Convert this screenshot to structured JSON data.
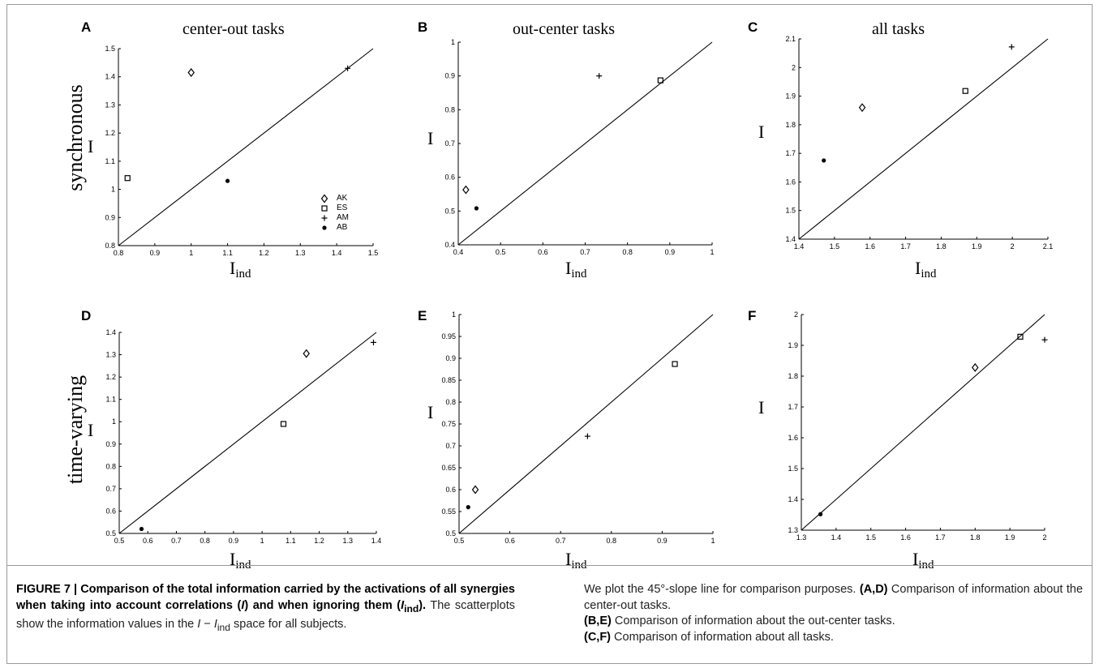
{
  "figure": {
    "row_labels": [
      "synchronous",
      "time-varying"
    ],
    "x_axis_label_main": "I",
    "x_axis_label_sub": "ind",
    "y_axis_label": "I",
    "legend": [
      {
        "label": "AK",
        "marker": "diamond"
      },
      {
        "label": "ES",
        "marker": "square"
      },
      {
        "label": "AM",
        "marker": "plus"
      },
      {
        "label": "AB",
        "marker": "dot"
      }
    ]
  },
  "chart_data": [
    {
      "panel": "A",
      "type": "scatter",
      "title": "center-out tasks",
      "xlabel": "I_ind",
      "ylabel": "I",
      "xlim": [
        0.8,
        1.5
      ],
      "ylim": [
        0.8,
        1.5
      ],
      "xticks": [
        "0.8",
        "0.9",
        "1",
        "1.1",
        "1.2",
        "1.3",
        "1.4",
        "1.5"
      ],
      "yticks": [
        "0.8",
        "0.9",
        "1",
        "1.1",
        "1.2",
        "1.3",
        "1.4",
        "1.5"
      ],
      "reference_line": "y = x",
      "points": [
        {
          "subject": "AK",
          "marker": "diamond",
          "x": 1.0,
          "y": 1.415
        },
        {
          "subject": "ES",
          "marker": "square",
          "x": 0.825,
          "y": 1.04
        },
        {
          "subject": "AM",
          "marker": "plus",
          "x": 1.43,
          "y": 1.43
        },
        {
          "subject": "AB",
          "marker": "dot",
          "x": 1.1,
          "y": 1.03
        }
      ]
    },
    {
      "panel": "B",
      "type": "scatter",
      "title": "out-center tasks",
      "xlabel": "I_ind",
      "ylabel": "I",
      "xlim": [
        0.4,
        1.0
      ],
      "ylim": [
        0.4,
        1.0
      ],
      "xticks": [
        "0.4",
        "0.5",
        "0.6",
        "0.7",
        "0.8",
        "0.9",
        "1"
      ],
      "yticks": [
        "0.4",
        "0.5",
        "0.6",
        "0.7",
        "0.8",
        "0.9",
        "1"
      ],
      "reference_line": "y = x",
      "points": [
        {
          "subject": "AK",
          "marker": "diamond",
          "x": 0.418,
          "y": 0.563
        },
        {
          "subject": "ES",
          "marker": "square",
          "x": 0.878,
          "y": 0.887
        },
        {
          "subject": "AM",
          "marker": "plus",
          "x": 0.733,
          "y": 0.9
        },
        {
          "subject": "AB",
          "marker": "dot",
          "x": 0.443,
          "y": 0.508
        }
      ]
    },
    {
      "panel": "C",
      "type": "scatter",
      "title": "all tasks",
      "xlabel": "I_ind",
      "ylabel": "I",
      "xlim": [
        1.4,
        2.1
      ],
      "ylim": [
        1.4,
        2.1
      ],
      "xticks": [
        "1.4",
        "1.5",
        "1.6",
        "1.7",
        "1.8",
        "1.9",
        "2",
        "2.1"
      ],
      "yticks": [
        "1.4",
        "1.5",
        "1.6",
        "1.7",
        "1.8",
        "1.9",
        "2",
        "2.1"
      ],
      "reference_line": "y = x",
      "points": [
        {
          "subject": "AK",
          "marker": "diamond",
          "x": 1.578,
          "y": 1.86
        },
        {
          "subject": "ES",
          "marker": "square",
          "x": 1.868,
          "y": 1.918
        },
        {
          "subject": "AM",
          "marker": "plus",
          "x": 1.998,
          "y": 2.072
        },
        {
          "subject": "AB",
          "marker": "dot",
          "x": 1.47,
          "y": 1.675
        }
      ]
    },
    {
      "panel": "D",
      "type": "scatter",
      "title": "",
      "xlabel": "I_ind",
      "ylabel": "I",
      "xlim": [
        0.5,
        1.4
      ],
      "ylim": [
        0.5,
        1.4
      ],
      "xticks": [
        "0.5",
        "0.6",
        "0.7",
        "0.8",
        "0.9",
        "1",
        "1.1",
        "1.2",
        "1.3",
        "1.4"
      ],
      "yticks": [
        "0.5",
        "0.6",
        "0.7",
        "0.8",
        "0.9",
        "1",
        "1.1",
        "1.2",
        "1.3",
        "1.4"
      ],
      "reference_line": "y = x",
      "points": [
        {
          "subject": "AK",
          "marker": "diamond",
          "x": 1.155,
          "y": 1.305
        },
        {
          "subject": "ES",
          "marker": "square",
          "x": 1.075,
          "y": 0.99
        },
        {
          "subject": "AM",
          "marker": "plus",
          "x": 1.39,
          "y": 1.355
        },
        {
          "subject": "AB",
          "marker": "dot",
          "x": 0.578,
          "y": 0.52
        }
      ]
    },
    {
      "panel": "E",
      "type": "scatter",
      "title": "",
      "xlabel": "I_ind",
      "ylabel": "I",
      "xlim": [
        0.5,
        1.0
      ],
      "ylim": [
        0.5,
        1.0
      ],
      "xticks": [
        "0.5",
        "0.6",
        "0.7",
        "0.8",
        "0.9",
        "1"
      ],
      "yticks": [
        "0.5",
        "0.55",
        "0.6",
        "0.65",
        "0.7",
        "0.75",
        "0.8",
        "0.85",
        "0.9",
        "0.95",
        "1"
      ],
      "reference_line": "y = x",
      "points": [
        {
          "subject": "AK",
          "marker": "diamond",
          "x": 0.532,
          "y": 0.6
        },
        {
          "subject": "ES",
          "marker": "square",
          "x": 0.925,
          "y": 0.887
        },
        {
          "subject": "AM",
          "marker": "plus",
          "x": 0.753,
          "y": 0.722
        },
        {
          "subject": "AB",
          "marker": "dot",
          "x": 0.518,
          "y": 0.56
        }
      ]
    },
    {
      "panel": "F",
      "type": "scatter",
      "title": "",
      "xlabel": "I_ind",
      "ylabel": "I",
      "xlim": [
        1.3,
        2.0
      ],
      "ylim": [
        1.3,
        2.0
      ],
      "xticks": [
        "1.3",
        "1.4",
        "1.5",
        "1.6",
        "1.7",
        "1.8",
        "1.9",
        "2"
      ],
      "yticks": [
        "1.3",
        "1.4",
        "1.5",
        "1.6",
        "1.7",
        "1.8",
        "1.9",
        "2"
      ],
      "reference_line": "y = x",
      "points": [
        {
          "subject": "AK",
          "marker": "diamond",
          "x": 1.8,
          "y": 1.828
        },
        {
          "subject": "ES",
          "marker": "square",
          "x": 1.93,
          "y": 1.928
        },
        {
          "subject": "AM",
          "marker": "plus",
          "x": 2.0,
          "y": 1.918
        },
        {
          "subject": "AB",
          "marker": "dot",
          "x": 1.355,
          "y": 1.352
        }
      ]
    }
  ],
  "caption": {
    "label": "FIGURE 7 | ",
    "bold_a": "Comparison of the total information carried by the activations of all synergies when taking into account correlations (",
    "bold_a_var": "I",
    "bold_b": ") and when ignoring them (",
    "bold_b_var": "I",
    "bold_b_sub": "ind",
    "bold_c": ").",
    "text_a": " The scatterplots show the information values in the ",
    "text_var1": "I",
    "text_dash": " − ",
    "text_var2": "I",
    "text_var2_sub": "ind",
    "text_b": " space for all subjects.",
    "right_intro": "We plot the 45°-slope line for comparison purposes. ",
    "right_items": [
      {
        "label": "(A,D)",
        "text": " Comparison of information about the center-out tasks."
      },
      {
        "label": "(B,E)",
        "text": " Comparison of information about the out-center tasks."
      },
      {
        "label": "(C,F)",
        "text": " Comparison of information about all tasks."
      }
    ]
  }
}
